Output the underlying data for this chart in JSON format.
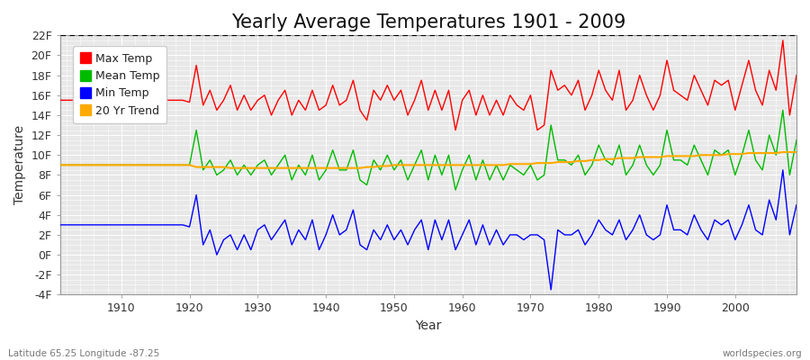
{
  "title": "Yearly Average Temperatures 1901 - 2009",
  "xlabel": "Year",
  "ylabel": "Temperature",
  "bottom_left": "Latitude 65.25 Longitude -87.25",
  "bottom_right": "worldspecies.org",
  "years": [
    1901,
    1902,
    1903,
    1904,
    1905,
    1906,
    1907,
    1908,
    1909,
    1910,
    1911,
    1912,
    1913,
    1914,
    1915,
    1916,
    1917,
    1918,
    1919,
    1920,
    1921,
    1922,
    1923,
    1924,
    1925,
    1926,
    1927,
    1928,
    1929,
    1930,
    1931,
    1932,
    1933,
    1934,
    1935,
    1936,
    1937,
    1938,
    1939,
    1940,
    1941,
    1942,
    1943,
    1944,
    1945,
    1946,
    1947,
    1948,
    1949,
    1950,
    1951,
    1952,
    1953,
    1954,
    1955,
    1956,
    1957,
    1958,
    1959,
    1960,
    1961,
    1962,
    1963,
    1964,
    1965,
    1966,
    1967,
    1968,
    1969,
    1970,
    1971,
    1972,
    1973,
    1974,
    1975,
    1976,
    1977,
    1978,
    1979,
    1980,
    1981,
    1982,
    1983,
    1984,
    1985,
    1986,
    1987,
    1988,
    1989,
    1990,
    1991,
    1992,
    1993,
    1994,
    1995,
    1996,
    1997,
    1998,
    1999,
    2000,
    2001,
    2002,
    2003,
    2004,
    2005,
    2006,
    2007,
    2008,
    2009
  ],
  "max_temp": [
    15.5,
    15.5,
    15.5,
    15.5,
    15.5,
    15.5,
    15.5,
    15.5,
    15.5,
    15.5,
    15.5,
    15.5,
    15.5,
    15.5,
    15.5,
    15.5,
    15.5,
    15.5,
    15.5,
    15.3,
    19.0,
    15.0,
    16.5,
    14.5,
    15.5,
    17.0,
    14.5,
    16.0,
    14.5,
    15.5,
    16.0,
    14.0,
    15.5,
    16.5,
    14.0,
    15.5,
    14.5,
    16.5,
    14.5,
    15.0,
    17.0,
    15.0,
    15.5,
    17.5,
    14.5,
    13.5,
    16.5,
    15.5,
    17.0,
    15.5,
    16.5,
    14.0,
    15.5,
    17.5,
    14.5,
    16.5,
    14.5,
    16.5,
    12.5,
    15.5,
    16.5,
    14.0,
    16.0,
    14.0,
    15.5,
    14.0,
    16.0,
    15.0,
    14.5,
    16.0,
    12.5,
    13.0,
    18.5,
    16.5,
    17.0,
    16.0,
    17.5,
    14.5,
    16.0,
    18.5,
    16.5,
    15.5,
    18.5,
    14.5,
    15.5,
    18.0,
    16.0,
    14.5,
    16.0,
    19.5,
    16.5,
    16.0,
    15.5,
    18.0,
    16.5,
    15.0,
    17.5,
    17.0,
    17.5,
    14.5,
    17.0,
    19.5,
    16.5,
    15.0,
    18.5,
    16.5,
    21.5,
    14.0,
    18.0
  ],
  "mean_temp": [
    9.0,
    9.0,
    9.0,
    9.0,
    9.0,
    9.0,
    9.0,
    9.0,
    9.0,
    9.0,
    9.0,
    9.0,
    9.0,
    9.0,
    9.0,
    9.0,
    9.0,
    9.0,
    9.0,
    9.0,
    12.5,
    8.5,
    9.5,
    8.0,
    8.5,
    9.5,
    8.0,
    9.0,
    8.0,
    9.0,
    9.5,
    8.0,
    9.0,
    10.0,
    7.5,
    9.0,
    8.0,
    10.0,
    7.5,
    8.5,
    10.5,
    8.5,
    8.5,
    10.5,
    7.5,
    7.0,
    9.5,
    8.5,
    10.0,
    8.5,
    9.5,
    7.5,
    9.0,
    10.5,
    7.5,
    10.0,
    8.0,
    10.0,
    6.5,
    8.5,
    10.0,
    7.5,
    9.5,
    7.5,
    9.0,
    7.5,
    9.0,
    8.5,
    8.0,
    9.0,
    7.5,
    8.0,
    13.0,
    9.5,
    9.5,
    9.0,
    10.0,
    8.0,
    9.0,
    11.0,
    9.5,
    9.0,
    11.0,
    8.0,
    9.0,
    11.0,
    9.0,
    8.0,
    9.0,
    12.5,
    9.5,
    9.5,
    9.0,
    11.0,
    9.5,
    8.0,
    10.5,
    10.0,
    10.5,
    8.0,
    10.0,
    12.5,
    9.5,
    8.5,
    12.0,
    10.0,
    14.5,
    8.0,
    11.5
  ],
  "min_temp": [
    3.0,
    3.0,
    3.0,
    3.0,
    3.0,
    3.0,
    3.0,
    3.0,
    3.0,
    3.0,
    3.0,
    3.0,
    3.0,
    3.0,
    3.0,
    3.0,
    3.0,
    3.0,
    3.0,
    2.8,
    6.0,
    1.0,
    2.5,
    0.0,
    1.5,
    2.0,
    0.5,
    2.0,
    0.5,
    2.5,
    3.0,
    1.5,
    2.5,
    3.5,
    1.0,
    2.5,
    1.5,
    3.5,
    0.5,
    2.0,
    4.0,
    2.0,
    2.5,
    4.5,
    1.0,
    0.5,
    2.5,
    1.5,
    3.0,
    1.5,
    2.5,
    1.0,
    2.5,
    3.5,
    0.5,
    3.5,
    1.5,
    3.5,
    0.5,
    2.0,
    3.5,
    1.0,
    3.0,
    1.0,
    2.5,
    1.0,
    2.0,
    2.0,
    1.5,
    2.0,
    2.0,
    1.5,
    -3.5,
    2.5,
    2.0,
    2.0,
    2.5,
    1.0,
    2.0,
    3.5,
    2.5,
    2.0,
    3.5,
    1.5,
    2.5,
    4.0,
    2.0,
    1.5,
    2.0,
    5.0,
    2.5,
    2.5,
    2.0,
    4.0,
    2.5,
    1.5,
    3.5,
    3.0,
    3.5,
    1.5,
    3.0,
    5.0,
    2.5,
    2.0,
    5.5,
    3.5,
    8.5,
    2.0,
    5.0
  ],
  "trend": [
    9.0,
    9.0,
    9.0,
    9.0,
    9.0,
    9.0,
    9.0,
    9.0,
    9.0,
    9.0,
    9.0,
    9.0,
    9.0,
    9.0,
    9.0,
    9.0,
    9.0,
    9.0,
    9.0,
    9.0,
    8.8,
    8.8,
    8.8,
    8.8,
    8.8,
    8.7,
    8.7,
    8.7,
    8.7,
    8.7,
    8.7,
    8.7,
    8.7,
    8.7,
    8.7,
    8.7,
    8.7,
    8.7,
    8.7,
    8.7,
    8.7,
    8.7,
    8.7,
    8.7,
    8.7,
    8.8,
    8.8,
    8.9,
    8.9,
    9.0,
    9.0,
    9.0,
    9.0,
    9.0,
    9.0,
    9.0,
    9.0,
    9.0,
    9.0,
    9.0,
    9.0,
    9.0,
    9.0,
    9.0,
    9.0,
    9.0,
    9.1,
    9.1,
    9.1,
    9.1,
    9.2,
    9.2,
    9.2,
    9.3,
    9.3,
    9.3,
    9.4,
    9.4,
    9.5,
    9.5,
    9.6,
    9.6,
    9.7,
    9.7,
    9.7,
    9.8,
    9.8,
    9.8,
    9.8,
    9.9,
    9.9,
    9.9,
    9.9,
    9.9,
    10.0,
    10.0,
    10.0,
    10.0,
    10.1,
    10.1,
    10.1,
    10.2,
    10.2,
    10.2,
    10.2,
    10.2,
    10.3,
    10.3,
    10.3
  ],
  "ylim": [
    -4,
    22
  ],
  "yticks": [
    -4,
    -2,
    0,
    2,
    4,
    6,
    8,
    10,
    12,
    14,
    16,
    18,
    20,
    22
  ],
  "ytick_labels": [
    "-4F",
    "-2F",
    "0F",
    "2F",
    "4F",
    "6F",
    "8F",
    "10F",
    "12F",
    "14F",
    "16F",
    "18F",
    "20F",
    "22F"
  ],
  "xlim": [
    1901,
    2009
  ],
  "xticks": [
    1910,
    1920,
    1930,
    1940,
    1950,
    1960,
    1970,
    1980,
    1990,
    2000
  ],
  "fig_bg_color": "#ffffff",
  "plot_bg_color": "#e8e8e8",
  "grid_color": "#ffffff",
  "max_color": "#ff0000",
  "mean_color": "#00bb00",
  "min_color": "#0000ff",
  "trend_color": "#ffaa00",
  "dashed_line_y": 22,
  "title_fontsize": 15,
  "axis_fontsize": 10,
  "tick_fontsize": 9,
  "legend_fontsize": 9
}
